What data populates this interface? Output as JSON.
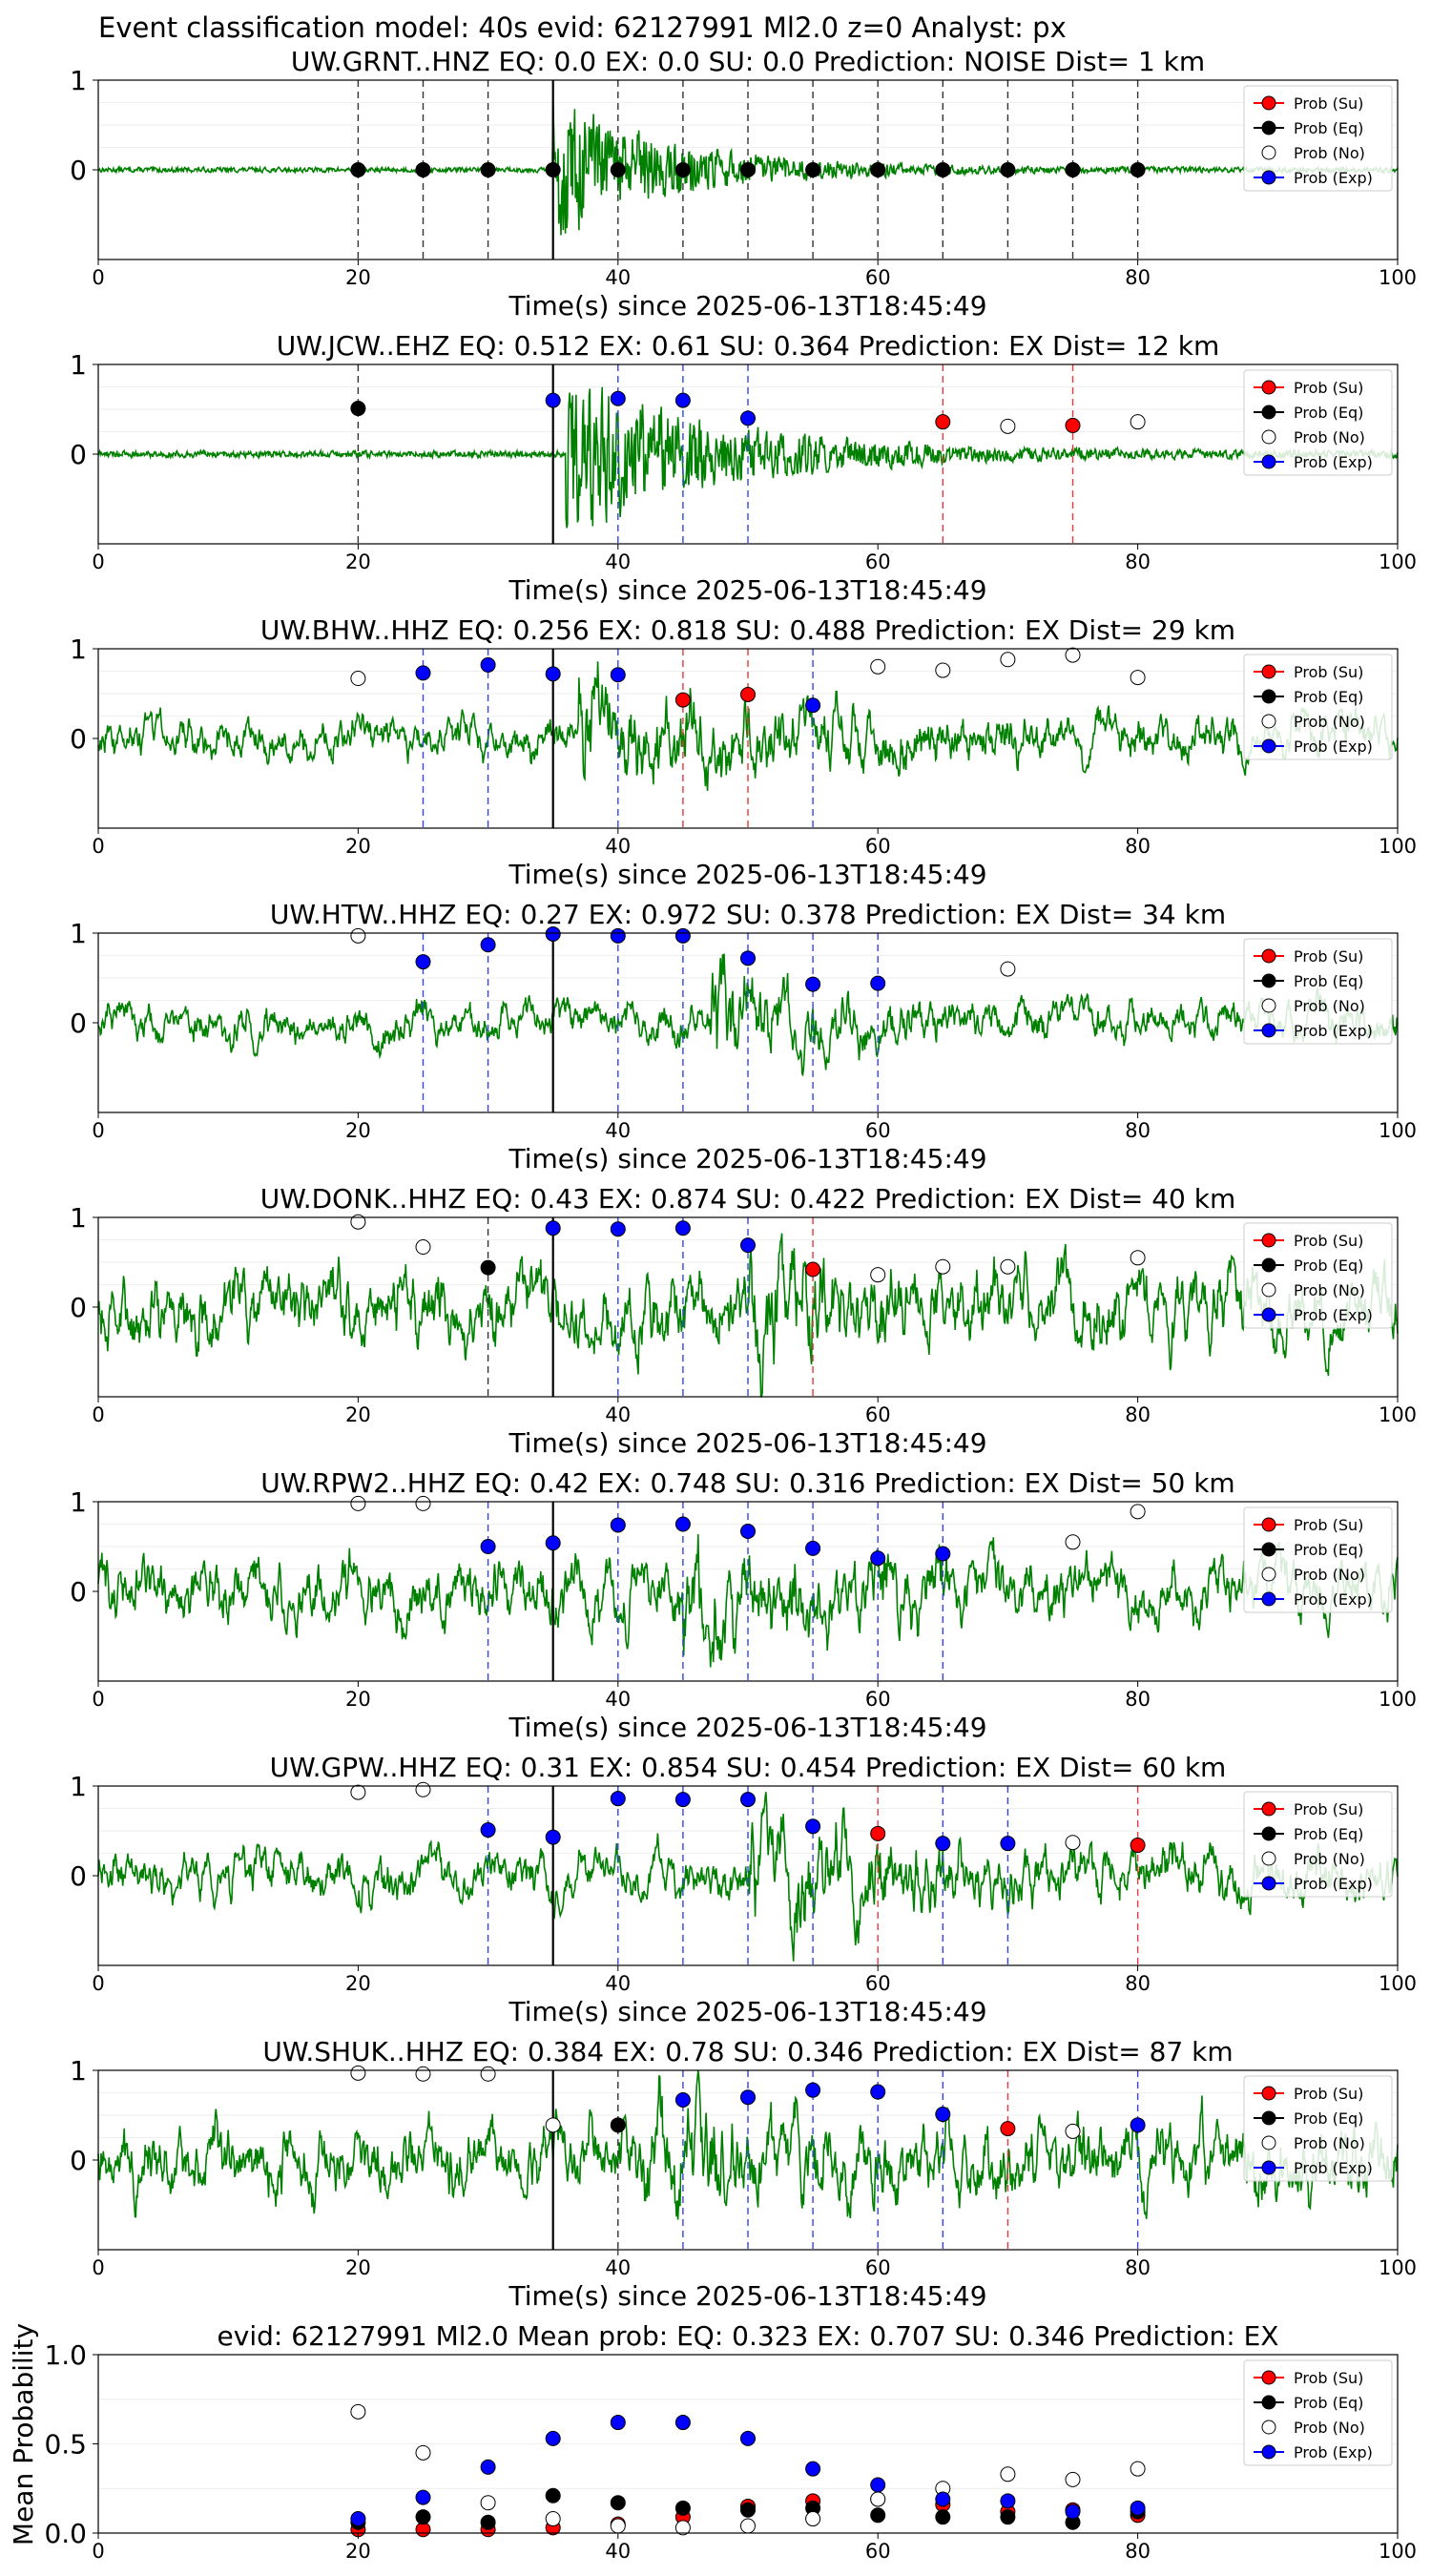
{
  "figure": {
    "suptitle": "Event classification model: 40s evid: 62127991 Ml2.0 z=0 Analyst: px",
    "colors": {
      "waveform": "#008000",
      "su": "#ff0000",
      "eq": "#000000",
      "no": "#ffffff",
      "exp": "#0000ff",
      "arrival_line": "#000000"
    }
  },
  "chart_data": [
    {
      "type": "line",
      "title": "UW.GRNT..HNZ   EQ: 0.0  EX: 0.0  SU: 0.0   Prediction: NOISE    Dist= 1 km",
      "xlabel": "Time(s) since 2025-06-13T18:45:49",
      "xlim": [
        0,
        100
      ],
      "ylim": [
        -1,
        1
      ],
      "xticks": [
        "0",
        "20",
        "40",
        "60",
        "80",
        "100"
      ],
      "yticks": [
        "0",
        "1"
      ],
      "arrival_time": 35,
      "waveform": {
        "style": "impulsive",
        "onset": 35,
        "amplitude": 0.9,
        "noise": 0.03,
        "coda": 9
      },
      "windows": [
        {
          "t": 20,
          "cls": "eq",
          "p": 0.0
        },
        {
          "t": 25,
          "cls": "eq",
          "p": 0.0
        },
        {
          "t": 30,
          "cls": "eq",
          "p": 0.0
        },
        {
          "t": 35,
          "cls": "eq",
          "p": 0.0
        },
        {
          "t": 40,
          "cls": "eq",
          "p": 0.0
        },
        {
          "t": 45,
          "cls": "eq",
          "p": 0.0
        },
        {
          "t": 50,
          "cls": "eq",
          "p": 0.0
        },
        {
          "t": 55,
          "cls": "eq",
          "p": 0.0
        },
        {
          "t": 60,
          "cls": "eq",
          "p": 0.0
        },
        {
          "t": 65,
          "cls": "eq",
          "p": 0.0
        },
        {
          "t": 70,
          "cls": "eq",
          "p": 0.0
        },
        {
          "t": 75,
          "cls": "eq",
          "p": 0.0
        },
        {
          "t": 80,
          "cls": "eq",
          "p": 0.0
        }
      ],
      "legend": [
        "Prob (Su)",
        "Prob (Eq)",
        "Prob (No)",
        "Prob (Exp)"
      ],
      "legend_loc": "upper right"
    },
    {
      "type": "line",
      "title": "UW.JCW..EHZ   EQ: 0.512  EX: 0.61  SU: 0.364   Prediction: EX    Dist= 12 km",
      "xlabel": "Time(s) since 2025-06-13T18:45:49",
      "xlim": [
        0,
        100
      ],
      "ylim": [
        -1,
        1
      ],
      "xticks": [
        "0",
        "20",
        "40",
        "60",
        "80",
        "100"
      ],
      "yticks": [
        "0",
        "1"
      ],
      "arrival_time": 35,
      "waveform": {
        "style": "impulsive",
        "onset": 36,
        "amplitude": 0.95,
        "noise": 0.04,
        "coda": 12
      },
      "windows": [
        {
          "t": 20,
          "cls": "eq",
          "p": 0.51
        },
        {
          "t": 35,
          "cls": "exp",
          "p": 0.6
        },
        {
          "t": 40,
          "cls": "exp",
          "p": 0.62
        },
        {
          "t": 45,
          "cls": "exp",
          "p": 0.6
        },
        {
          "t": 50,
          "cls": "exp",
          "p": 0.4
        },
        {
          "t": 65,
          "cls": "su",
          "p": 0.36
        },
        {
          "t": 70,
          "cls": "no",
          "p": 0.31
        },
        {
          "t": 75,
          "cls": "su",
          "p": 0.32
        },
        {
          "t": 80,
          "cls": "no",
          "p": 0.36
        }
      ],
      "legend": [
        "Prob (Su)",
        "Prob (Eq)",
        "Prob (No)",
        "Prob (Exp)"
      ],
      "legend_loc": "upper right"
    },
    {
      "type": "line",
      "title": "UW.BHW..HHZ   EQ: 0.256  EX: 0.818  SU: 0.488   Prediction: EX    Dist= 29 km",
      "xlabel": "Time(s) since 2025-06-13T18:45:49",
      "xlim": [
        0,
        100
      ],
      "ylim": [
        -1,
        1
      ],
      "xticks": [
        "0",
        "20",
        "40",
        "60",
        "80",
        "100"
      ],
      "yticks": [
        "0",
        "1"
      ],
      "arrival_time": 35,
      "waveform": {
        "style": "noisy",
        "onset": 37,
        "amplitude": 0.6,
        "noise": 0.3,
        "coda": 15
      },
      "windows": [
        {
          "t": 20,
          "cls": "no",
          "p": 0.67
        },
        {
          "t": 25,
          "cls": "exp",
          "p": 0.73
        },
        {
          "t": 30,
          "cls": "exp",
          "p": 0.82
        },
        {
          "t": 35,
          "cls": "exp",
          "p": 0.72
        },
        {
          "t": 40,
          "cls": "exp",
          "p": 0.71
        },
        {
          "t": 45,
          "cls": "su",
          "p": 0.43
        },
        {
          "t": 50,
          "cls": "su",
          "p": 0.49
        },
        {
          "t": 55,
          "cls": "exp",
          "p": 0.37
        },
        {
          "t": 60,
          "cls": "no",
          "p": 0.8
        },
        {
          "t": 65,
          "cls": "no",
          "p": 0.76
        },
        {
          "t": 70,
          "cls": "no",
          "p": 0.88
        },
        {
          "t": 75,
          "cls": "no",
          "p": 0.93
        },
        {
          "t": 80,
          "cls": "no",
          "p": 0.68
        }
      ],
      "legend": [
        "Prob (Su)",
        "Prob (Eq)",
        "Prob (No)",
        "Prob (Exp)"
      ],
      "legend_loc": "upper right"
    },
    {
      "type": "line",
      "title": "UW.HTW..HHZ   EQ: 0.27  EX: 0.972  SU: 0.378   Prediction: EX    Dist= 34 km",
      "xlabel": "Time(s) since 2025-06-13T18:45:49",
      "xlim": [
        0,
        100
      ],
      "ylim": [
        -1,
        1
      ],
      "xticks": [
        "0",
        "20",
        "40",
        "60",
        "80",
        "100"
      ],
      "yticks": [
        "0",
        "1"
      ],
      "arrival_time": 35,
      "waveform": {
        "style": "noisy",
        "onset": 47,
        "amplitude": 0.7,
        "noise": 0.28,
        "coda": 6
      },
      "windows": [
        {
          "t": 20,
          "cls": "no",
          "p": 0.97
        },
        {
          "t": 25,
          "cls": "exp",
          "p": 0.68
        },
        {
          "t": 30,
          "cls": "exp",
          "p": 0.87
        },
        {
          "t": 35,
          "cls": "exp",
          "p": 0.99
        },
        {
          "t": 40,
          "cls": "exp",
          "p": 0.97
        },
        {
          "t": 45,
          "cls": "exp",
          "p": 0.97
        },
        {
          "t": 50,
          "cls": "exp",
          "p": 0.72
        },
        {
          "t": 55,
          "cls": "exp",
          "p": 0.43
        },
        {
          "t": 60,
          "cls": "exp",
          "p": 0.44
        },
        {
          "t": 70,
          "cls": "no",
          "p": 0.6
        }
      ],
      "legend": [
        "Prob (Su)",
        "Prob (Eq)",
        "Prob (No)",
        "Prob (Exp)"
      ],
      "legend_loc": "upper right"
    },
    {
      "type": "line",
      "title": "UW.DONK..HHZ   EQ: 0.43  EX: 0.874  SU: 0.422   Prediction: EX    Dist= 40 km",
      "xlabel": "Time(s) since 2025-06-13T18:45:49",
      "xlim": [
        0,
        100
      ],
      "ylim": [
        -1,
        1
      ],
      "xticks": [
        "0",
        "20",
        "40",
        "60",
        "80",
        "100"
      ],
      "yticks": [
        "0",
        "1"
      ],
      "arrival_time": 35,
      "waveform": {
        "style": "noisy",
        "onset": 50,
        "amplitude": 0.5,
        "noise": 0.55,
        "coda": 5
      },
      "windows": [
        {
          "t": 20,
          "cls": "no",
          "p": 0.95
        },
        {
          "t": 25,
          "cls": "no",
          "p": 0.67
        },
        {
          "t": 30,
          "cls": "eq",
          "p": 0.44
        },
        {
          "t": 35,
          "cls": "exp",
          "p": 0.88
        },
        {
          "t": 40,
          "cls": "exp",
          "p": 0.87
        },
        {
          "t": 45,
          "cls": "exp",
          "p": 0.88
        },
        {
          "t": 50,
          "cls": "exp",
          "p": 0.69
        },
        {
          "t": 55,
          "cls": "su",
          "p": 0.42
        },
        {
          "t": 60,
          "cls": "no",
          "p": 0.36
        },
        {
          "t": 65,
          "cls": "no",
          "p": 0.45
        },
        {
          "t": 70,
          "cls": "no",
          "p": 0.45
        },
        {
          "t": 80,
          "cls": "no",
          "p": 0.55
        }
      ],
      "legend": [
        "Prob (Su)",
        "Prob (Eq)",
        "Prob (No)",
        "Prob (Exp)"
      ],
      "legend_loc": "upper right"
    },
    {
      "type": "line",
      "title": "UW.RPW2..HHZ   EQ: 0.42  EX: 0.748  SU: 0.316   Prediction: EX    Dist= 50 km",
      "xlabel": "Time(s) since 2025-06-13T18:45:49",
      "xlim": [
        0,
        100
      ],
      "ylim": [
        -1,
        1
      ],
      "xticks": [
        "0",
        "20",
        "40",
        "60",
        "80",
        "100"
      ],
      "yticks": [
        "0",
        "1"
      ],
      "arrival_time": 35,
      "waveform": {
        "style": "noisy",
        "onset": 45,
        "amplitude": 0.45,
        "noise": 0.45,
        "coda": 10
      },
      "windows": [
        {
          "t": 20,
          "cls": "no",
          "p": 0.98
        },
        {
          "t": 25,
          "cls": "no",
          "p": 0.98
        },
        {
          "t": 30,
          "cls": "exp",
          "p": 0.5
        },
        {
          "t": 35,
          "cls": "exp",
          "p": 0.54
        },
        {
          "t": 40,
          "cls": "exp",
          "p": 0.74
        },
        {
          "t": 45,
          "cls": "exp",
          "p": 0.75
        },
        {
          "t": 50,
          "cls": "exp",
          "p": 0.67
        },
        {
          "t": 55,
          "cls": "exp",
          "p": 0.48
        },
        {
          "t": 60,
          "cls": "exp",
          "p": 0.37
        },
        {
          "t": 65,
          "cls": "exp",
          "p": 0.42
        },
        {
          "t": 75,
          "cls": "no",
          "p": 0.55
        },
        {
          "t": 80,
          "cls": "no",
          "p": 0.89
        }
      ],
      "legend": [
        "Prob (Su)",
        "Prob (Eq)",
        "Prob (No)",
        "Prob (Exp)"
      ],
      "legend_loc": "upper right"
    },
    {
      "type": "line",
      "title": "UW.GPW..HHZ   EQ: 0.31  EX: 0.854  SU: 0.454   Prediction: EX    Dist= 60 km",
      "xlabel": "Time(s) since 2025-06-13T18:45:49",
      "xlim": [
        0,
        100
      ],
      "ylim": [
        -1,
        1
      ],
      "xticks": [
        "0",
        "20",
        "40",
        "60",
        "80",
        "100"
      ],
      "yticks": [
        "0",
        "1"
      ],
      "arrival_time": 35,
      "waveform": {
        "style": "noisy",
        "onset": 50,
        "amplitude": 0.55,
        "noise": 0.35,
        "coda": 12
      },
      "windows": [
        {
          "t": 20,
          "cls": "no",
          "p": 0.93
        },
        {
          "t": 25,
          "cls": "no",
          "p": 0.96
        },
        {
          "t": 30,
          "cls": "exp",
          "p": 0.51
        },
        {
          "t": 35,
          "cls": "exp",
          "p": 0.43
        },
        {
          "t": 40,
          "cls": "exp",
          "p": 0.86
        },
        {
          "t": 45,
          "cls": "exp",
          "p": 0.85
        },
        {
          "t": 50,
          "cls": "exp",
          "p": 0.85
        },
        {
          "t": 55,
          "cls": "exp",
          "p": 0.55
        },
        {
          "t": 60,
          "cls": "su",
          "p": 0.47
        },
        {
          "t": 65,
          "cls": "exp",
          "p": 0.36
        },
        {
          "t": 70,
          "cls": "exp",
          "p": 0.36
        },
        {
          "t": 75,
          "cls": "no",
          "p": 0.37
        },
        {
          "t": 80,
          "cls": "su",
          "p": 0.34
        }
      ],
      "legend": [
        "Prob (Su)",
        "Prob (Eq)",
        "Prob (No)",
        "Prob (Exp)"
      ],
      "legend_loc": "upper right"
    },
    {
      "type": "line",
      "title": "UW.SHUK..HHZ   EQ: 0.384  EX: 0.78  SU: 0.346   Prediction: EX    Dist= 87 km",
      "xlabel": "Time(s) since 2025-06-13T18:45:49",
      "xlim": [
        0,
        100
      ],
      "ylim": [
        -1,
        1
      ],
      "xticks": [
        "0",
        "20",
        "40",
        "60",
        "80",
        "100"
      ],
      "yticks": [
        "0",
        "1"
      ],
      "arrival_time": 35,
      "waveform": {
        "style": "noisy",
        "onset": 42,
        "amplitude": 0.4,
        "noise": 0.5,
        "coda": 12
      },
      "windows": [
        {
          "t": 20,
          "cls": "no",
          "p": 0.97
        },
        {
          "t": 25,
          "cls": "no",
          "p": 0.96
        },
        {
          "t": 30,
          "cls": "no",
          "p": 0.96
        },
        {
          "t": 35,
          "cls": "no",
          "p": 0.39
        },
        {
          "t": 40,
          "cls": "eq",
          "p": 0.39
        },
        {
          "t": 45,
          "cls": "exp",
          "p": 0.67
        },
        {
          "t": 50,
          "cls": "exp",
          "p": 0.7
        },
        {
          "t": 55,
          "cls": "exp",
          "p": 0.78
        },
        {
          "t": 60,
          "cls": "exp",
          "p": 0.76
        },
        {
          "t": 65,
          "cls": "exp",
          "p": 0.51
        },
        {
          "t": 70,
          "cls": "su",
          "p": 0.35
        },
        {
          "t": 75,
          "cls": "no",
          "p": 0.32
        },
        {
          "t": 80,
          "cls": "exp",
          "p": 0.39
        }
      ],
      "legend": [
        "Prob (Su)",
        "Prob (Eq)",
        "Prob (No)",
        "Prob (Exp)"
      ],
      "legend_loc": "upper right"
    },
    {
      "type": "scatter",
      "title": "evid: 62127991  Ml2.0   Mean prob:   EQ: 0.323  EX: 0.707  SU: 0.346   Prediction: EX",
      "ylabel": "Mean Probability",
      "xlim": [
        0,
        100
      ],
      "ylim": [
        0,
        1
      ],
      "xticks": [
        "0",
        "20",
        "40",
        "60",
        "80",
        "100"
      ],
      "yticks": [
        "0.0",
        "0.5",
        "1.0"
      ],
      "x": [
        20,
        25,
        30,
        35,
        40,
        45,
        50,
        55,
        60,
        65,
        70,
        75,
        80
      ],
      "series": [
        {
          "name": "Prob (Su)",
          "cls": "su",
          "values": [
            0.02,
            0.02,
            0.02,
            0.03,
            0.05,
            0.09,
            0.15,
            0.18,
            0.19,
            0.16,
            0.12,
            0.13,
            0.1
          ]
        },
        {
          "name": "Prob (Eq)",
          "cls": "eq",
          "values": [
            0.06,
            0.09,
            0.06,
            0.21,
            0.17,
            0.14,
            0.13,
            0.14,
            0.1,
            0.09,
            0.09,
            0.06,
            0.12
          ]
        },
        {
          "name": "Prob (No)",
          "cls": "no",
          "values": [
            0.68,
            0.45,
            0.17,
            0.08,
            0.04,
            0.03,
            0.04,
            0.08,
            0.19,
            0.25,
            0.33,
            0.3,
            0.36
          ]
        },
        {
          "name": "Prob (Exp)",
          "cls": "exp",
          "values": [
            0.08,
            0.2,
            0.37,
            0.53,
            0.62,
            0.62,
            0.53,
            0.36,
            0.27,
            0.19,
            0.18,
            0.12,
            0.14
          ]
        }
      ],
      "legend": [
        "Prob (Su)",
        "Prob (Eq)",
        "Prob (No)",
        "Prob (Exp)"
      ],
      "legend_loc": "upper right"
    }
  ]
}
